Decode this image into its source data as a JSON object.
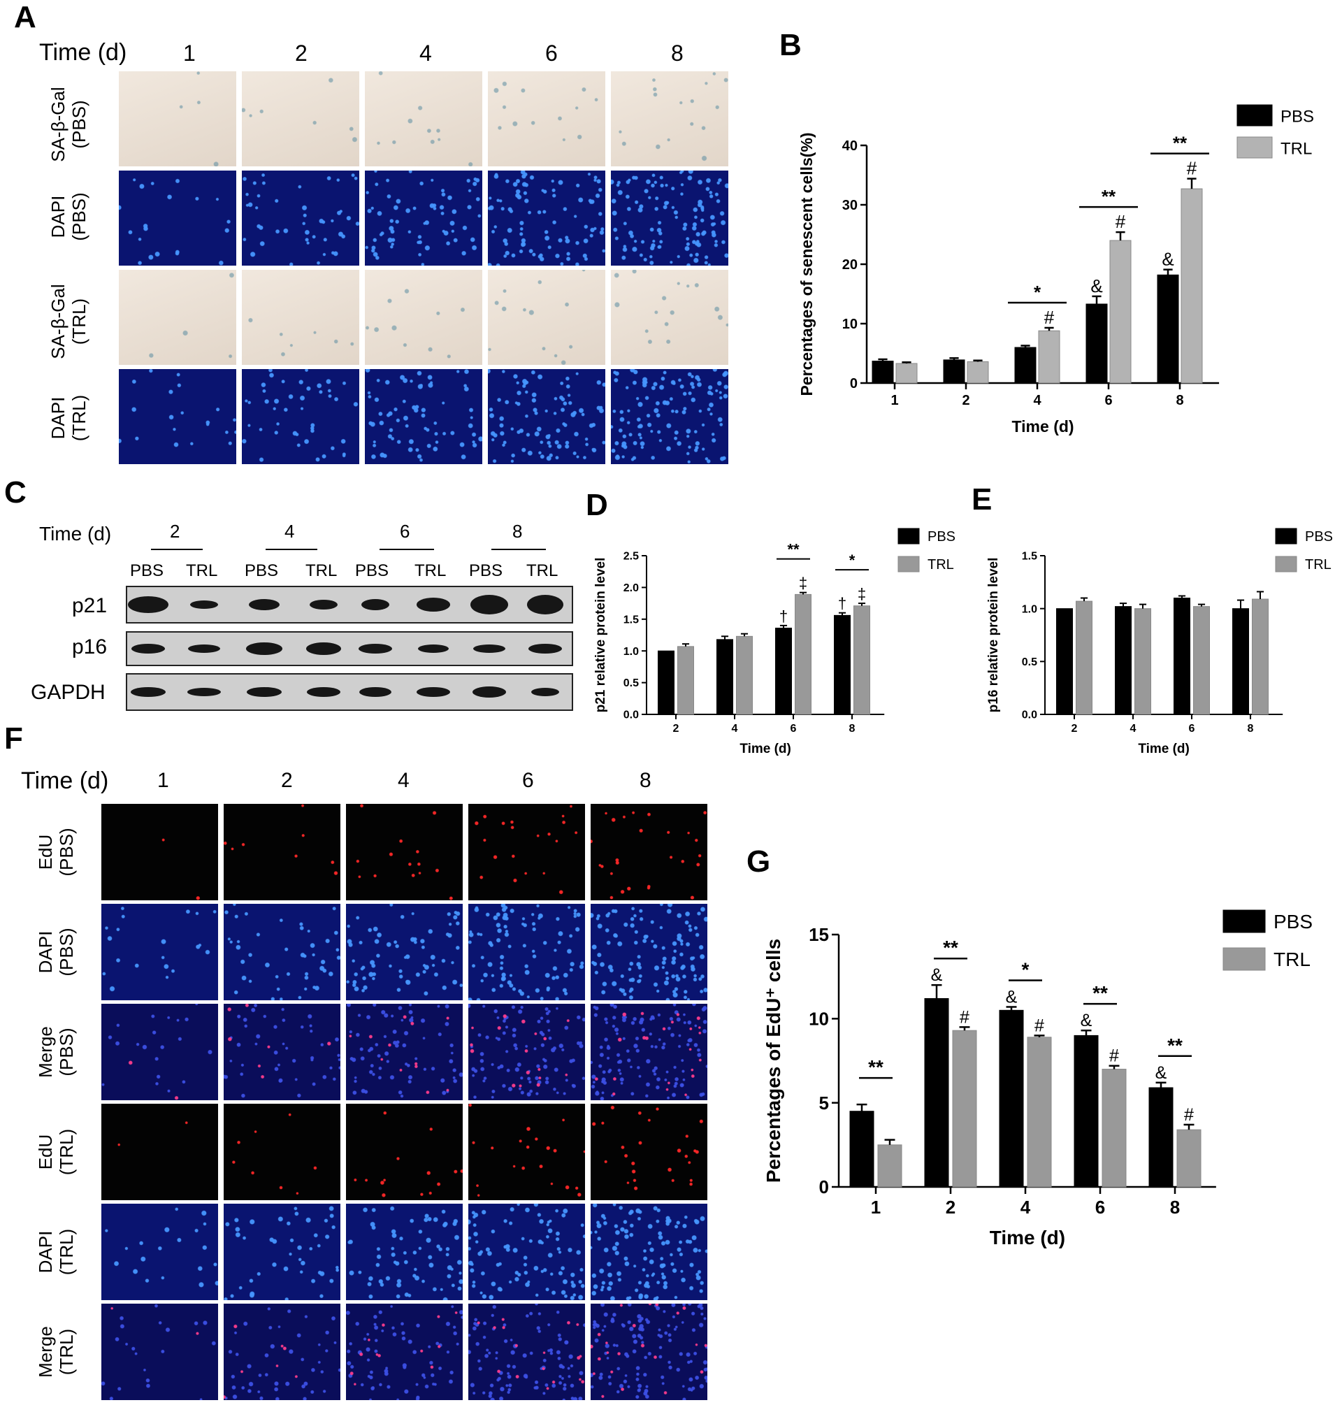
{
  "panels": {
    "A": {
      "letter": "A",
      "time_label": "Time (d)",
      "days": [
        "1",
        "2",
        "4",
        "6",
        "8"
      ],
      "rows": [
        {
          "line1": "SA-β-Gal",
          "line2": "(PBS)",
          "style": "bright"
        },
        {
          "line1": "DAPI",
          "line2": "(PBS)",
          "style": "dapi"
        },
        {
          "line1": "SA-β-Gal",
          "line2": "(TRL)",
          "style": "bright"
        },
        {
          "line1": "DAPI",
          "line2": "(TRL)",
          "style": "dapi"
        }
      ]
    },
    "C": {
      "letter": "C",
      "time_label": "Time (d)",
      "days": [
        "2",
        "4",
        "6",
        "8"
      ],
      "lane_labels": [
        "PBS",
        "TRL",
        "PBS",
        "TRL",
        "PBS",
        "TRL",
        "PBS",
        "TRL"
      ],
      "proteins": [
        "p21",
        "p16",
        "GAPDH"
      ]
    },
    "F": {
      "letter": "F",
      "time_label": "Time (d)",
      "days": [
        "1",
        "2",
        "4",
        "6",
        "8"
      ],
      "rows": [
        {
          "line1": "EdU",
          "line2": "(PBS)",
          "style": "edu"
        },
        {
          "line1": "DAPI",
          "line2": "(PBS)",
          "style": "dapi"
        },
        {
          "line1": "Merge",
          "line2": "(PBS)",
          "style": "merge"
        },
        {
          "line1": "EdU",
          "line2": "(TRL)",
          "style": "edu"
        },
        {
          "line1": "DAPI",
          "line2": "(TRL)",
          "style": "dapi"
        },
        {
          "line1": "Merge",
          "line2": "(TRL)",
          "style": "merge"
        }
      ]
    }
  },
  "colors": {
    "pbs": "#000000",
    "trl_light": "#b3b3b3",
    "trl_mid": "#999999"
  },
  "chart_data": [
    {
      "id": "B",
      "letter": "B",
      "type": "bar",
      "categories": [
        "1",
        "2",
        "4",
        "6",
        "8"
      ],
      "series": [
        {
          "name": "PBS",
          "values": [
            3.7,
            3.9,
            6.0,
            13.3,
            18.2
          ],
          "errors": [
            0.3,
            0.3,
            0.3,
            1.3,
            0.9
          ]
        },
        {
          "name": "TRL",
          "values": [
            3.3,
            3.6,
            8.8,
            24.0,
            32.7
          ],
          "errors": [
            0.2,
            0.2,
            0.5,
            1.4,
            1.7
          ]
        }
      ],
      "xlabel": "Time (d)",
      "ylabel": "Percentages of senescent cells(%)",
      "ylim": [
        0,
        40
      ],
      "yticks": [
        "0",
        "10",
        "20",
        "30",
        "40"
      ],
      "significance": [
        {
          "category": "4",
          "label": "*"
        },
        {
          "category": "6",
          "label": "**"
        },
        {
          "category": "8",
          "label": "**"
        }
      ],
      "bar_marks": [
        {
          "category": "4",
          "series": 1,
          "label": "#"
        },
        {
          "category": "6",
          "series": 0,
          "label": "&"
        },
        {
          "category": "6",
          "series": 1,
          "label": "#"
        },
        {
          "category": "8",
          "series": 0,
          "label": "&"
        },
        {
          "category": "8",
          "series": 1,
          "label": "#"
        }
      ],
      "legend_position": "top-right"
    },
    {
      "id": "D",
      "letter": "D",
      "type": "bar",
      "categories": [
        "2",
        "4",
        "6",
        "8"
      ],
      "series": [
        {
          "name": "PBS",
          "values": [
            1.0,
            1.18,
            1.36,
            1.56
          ],
          "errors": [
            0.0,
            0.05,
            0.04,
            0.04
          ]
        },
        {
          "name": "TRL",
          "values": [
            1.07,
            1.23,
            1.89,
            1.71
          ],
          "errors": [
            0.04,
            0.04,
            0.03,
            0.04
          ]
        }
      ],
      "xlabel": "Time (d)",
      "ylabel": "p21 relative protein level",
      "ylim": [
        0,
        2.5
      ],
      "yticks": [
        "0.0",
        "0.5",
        "1.0",
        "1.5",
        "2.0",
        "2.5"
      ],
      "significance": [
        {
          "category": "6",
          "label": "**"
        },
        {
          "category": "8",
          "label": "*"
        }
      ],
      "bar_marks": [
        {
          "category": "6",
          "series": 0,
          "label": "†"
        },
        {
          "category": "6",
          "series": 1,
          "label": "‡"
        },
        {
          "category": "8",
          "series": 0,
          "label": "†"
        },
        {
          "category": "8",
          "series": 1,
          "label": "‡"
        }
      ],
      "legend_position": "top-right"
    },
    {
      "id": "E",
      "letter": "E",
      "type": "bar",
      "categories": [
        "2",
        "4",
        "6",
        "8"
      ],
      "series": [
        {
          "name": "PBS",
          "values": [
            1.0,
            1.02,
            1.1,
            1.0
          ],
          "errors": [
            0.0,
            0.03,
            0.02,
            0.08
          ]
        },
        {
          "name": "TRL",
          "values": [
            1.07,
            1.0,
            1.02,
            1.09
          ],
          "errors": [
            0.03,
            0.04,
            0.02,
            0.07
          ]
        }
      ],
      "xlabel": "Time (d)",
      "ylabel": "p16 relative protein level",
      "ylim": [
        0,
        1.5
      ],
      "yticks": [
        "0.0",
        "0.5",
        "1.0",
        "1.5"
      ],
      "significance": [],
      "bar_marks": [],
      "legend_position": "top-right"
    },
    {
      "id": "G",
      "letter": "G",
      "type": "bar",
      "categories": [
        "1",
        "2",
        "4",
        "6",
        "8"
      ],
      "series": [
        {
          "name": "PBS",
          "values": [
            4.5,
            11.2,
            10.5,
            9.0,
            5.9
          ],
          "errors": [
            0.4,
            0.8,
            0.2,
            0.3,
            0.3
          ]
        },
        {
          "name": "TRL",
          "values": [
            2.5,
            9.3,
            8.9,
            7.0,
            3.4
          ],
          "errors": [
            0.3,
            0.2,
            0.1,
            0.2,
            0.3
          ]
        }
      ],
      "xlabel": "Time (d)",
      "ylabel": "Percentages of EdU⁺ cells",
      "ylim": [
        0,
        15
      ],
      "yticks": [
        "0",
        "5",
        "10",
        "15"
      ],
      "significance": [
        {
          "category": "1",
          "label": "**"
        },
        {
          "category": "2",
          "label": "**"
        },
        {
          "category": "4",
          "label": "*"
        },
        {
          "category": "6",
          "label": "**"
        },
        {
          "category": "8",
          "label": "**"
        }
      ],
      "bar_marks": [
        {
          "category": "2",
          "series": 0,
          "label": "&"
        },
        {
          "category": "2",
          "series": 1,
          "label": "#"
        },
        {
          "category": "4",
          "series": 0,
          "label": "&"
        },
        {
          "category": "4",
          "series": 1,
          "label": "#"
        },
        {
          "category": "6",
          "series": 0,
          "label": "&"
        },
        {
          "category": "6",
          "series": 1,
          "label": "#"
        },
        {
          "category": "8",
          "series": 0,
          "label": "&"
        },
        {
          "category": "8",
          "series": 1,
          "label": "#"
        }
      ],
      "legend_position": "top-right"
    }
  ]
}
